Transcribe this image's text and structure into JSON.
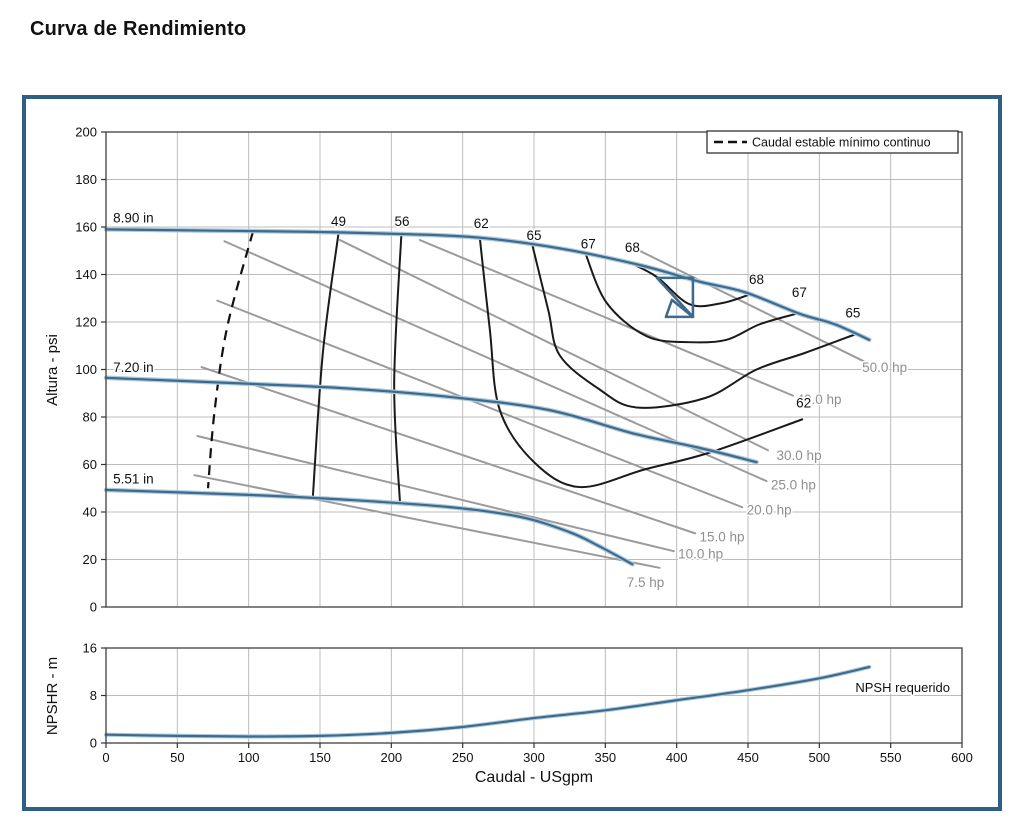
{
  "title": "Curva de Rendimiento",
  "legend": {
    "min_flow_label": "Caudal estable mínimo continuo"
  },
  "colors": {
    "panel_border": "#2e5f86",
    "curve_blue": "#3e6b8d",
    "curve_halo": "#aecbdd",
    "contour_black": "#1a1a1a",
    "power_gray": "#9b9b9b",
    "grid_gray": "#bcbcbc",
    "label_gray": "#8f8f8f",
    "plot_border": "#4d4d4d"
  },
  "chart_data": {
    "type": "line",
    "title": "Curva de Rendimiento",
    "x_axis": {
      "label": "Caudal - USgpm",
      "min": 0,
      "max": 600,
      "ticks": [
        0,
        50,
        100,
        150,
        200,
        250,
        300,
        350,
        400,
        450,
        500,
        550,
        600
      ]
    },
    "y_axis_main": {
      "label": "Altura - psi",
      "min": 0,
      "max": 200,
      "ticks": [
        0,
        20,
        40,
        60,
        80,
        100,
        120,
        140,
        160,
        180,
        200
      ]
    },
    "y_axis_npsh": {
      "label": "NPSHR - m",
      "min": 0,
      "max": 16,
      "ticks": [
        0,
        8,
        16
      ]
    },
    "legend": {
      "entries": [
        {
          "label": "Caudal estable mínimo continuo",
          "style": "dashed"
        }
      ],
      "position": "top-right"
    },
    "grid": true,
    "impeller_curves": [
      {
        "label": "8.90 in",
        "label_pos": [
          5,
          162
        ],
        "points": [
          [
            0,
            159
          ],
          [
            70,
            158.5
          ],
          [
            140,
            158
          ],
          [
            210,
            157
          ],
          [
            262,
            155.5
          ],
          [
            318,
            151
          ],
          [
            374,
            144
          ],
          [
            416,
            137
          ],
          [
            448,
            132.5
          ],
          [
            486,
            123.5
          ],
          [
            511,
            119
          ],
          [
            535,
            112.5
          ]
        ]
      },
      {
        "label": "7.20 in",
        "label_pos": [
          5,
          99
        ],
        "points": [
          [
            0,
            96.5
          ],
          [
            100,
            94
          ],
          [
            170,
            92
          ],
          [
            240,
            88.5
          ],
          [
            310,
            83
          ],
          [
            370,
            73
          ],
          [
            416,
            67
          ],
          [
            456,
            61
          ]
        ]
      },
      {
        "label": "5.51 in",
        "label_pos": [
          5,
          52
        ],
        "points": [
          [
            0,
            49.3
          ],
          [
            100,
            47.2
          ],
          [
            170,
            45.1
          ],
          [
            240,
            42.1
          ],
          [
            290,
            38
          ],
          [
            325,
            31.5
          ],
          [
            346,
            25.5
          ],
          [
            369,
            18
          ]
        ]
      }
    ],
    "min_flow_line": {
      "label": "Caudal estable mínimo continuo",
      "points": [
        [
          103,
          158
        ],
        [
          85,
          118
        ],
        [
          76,
          82
        ],
        [
          71.5,
          50
        ]
      ]
    },
    "efficiency_contours": [
      {
        "label": "49",
        "label_positions": [
          [
            163,
            160.5
          ]
        ],
        "points": [
          [
            163,
            157.5
          ],
          [
            152,
            107
          ],
          [
            145,
            46.5
          ]
        ]
      },
      {
        "label": "56",
        "label_positions": [
          [
            207.5,
            160.5
          ]
        ],
        "points": [
          [
            207,
            156.5
          ],
          [
            202,
            94
          ],
          [
            206,
            44.5
          ]
        ]
      },
      {
        "label": "62",
        "label_positions": [
          [
            263,
            159.5
          ],
          [
            489,
            84
          ]
        ],
        "points": [
          [
            262,
            155.5
          ],
          [
            269,
            117
          ],
          [
            276,
            83
          ],
          [
            300,
            61
          ],
          [
            332,
            50.5
          ],
          [
            378,
            58
          ],
          [
            423,
            65
          ],
          [
            488,
            79
          ]
        ]
      },
      {
        "label": "65",
        "label_positions": [
          [
            300,
            154.5
          ],
          [
            523.5,
            122
          ]
        ],
        "points": [
          [
            299,
            152
          ],
          [
            310,
            125
          ],
          [
            318,
            106
          ],
          [
            345,
            92
          ],
          [
            372,
            84
          ],
          [
            420,
            88
          ],
          [
            456,
            100
          ],
          [
            490,
            107
          ],
          [
            526,
            115
          ]
        ]
      },
      {
        "label": "67",
        "label_positions": [
          [
            338,
            151
          ],
          [
            486,
            130.5
          ]
        ],
        "points": [
          [
            336,
            149
          ],
          [
            351,
            128
          ],
          [
            379,
            114
          ],
          [
            409,
            111.5
          ],
          [
            435,
            112.5
          ],
          [
            458,
            119
          ],
          [
            484,
            123.5
          ]
        ]
      },
      {
        "label": "68",
        "label_positions": [
          [
            369,
            149.5
          ],
          [
            456,
            136
          ]
        ],
        "points": [
          [
            367,
            145
          ],
          [
            386,
            139
          ],
          [
            409,
            127.5
          ],
          [
            432,
            128
          ],
          [
            453,
            132
          ]
        ]
      }
    ],
    "power_lines": [
      {
        "label": "7.5 hp",
        "hp": 7.5,
        "points": [
          [
            62,
            55.5
          ],
          [
            388,
            16.5
          ]
        ],
        "label_pos": [
          365,
          8.5
        ]
      },
      {
        "label": "10.0 hp",
        "hp": 10,
        "points": [
          [
            64,
            72
          ],
          [
            398,
            23.5
          ]
        ],
        "label_pos": [
          401,
          20.5
        ]
      },
      {
        "label": "15.0 hp",
        "hp": 15,
        "points": [
          [
            67,
            101
          ],
          [
            413,
            31
          ]
        ],
        "label_pos": [
          416,
          27.5
        ]
      },
      {
        "label": "20.0 hp",
        "hp": 20,
        "points": [
          [
            78,
            129
          ],
          [
            446,
            42
          ]
        ],
        "label_pos": [
          449,
          39
        ]
      },
      {
        "label": "25.0 hp",
        "hp": 25,
        "points": [
          [
            83,
            154
          ],
          [
            463,
            53
          ]
        ],
        "label_pos": [
          466,
          49.5
        ]
      },
      {
        "label": "30.0 hp",
        "hp": 30,
        "points": [
          [
            164,
            154.5
          ],
          [
            464,
            66
          ]
        ],
        "label_pos": [
          470,
          62
        ]
      },
      {
        "label": "40.0 hp",
        "hp": 40,
        "points": [
          [
            220,
            154.5
          ],
          [
            481.5,
            89
          ]
        ],
        "label_pos": [
          484,
          85.5
        ]
      },
      {
        "label": "50.0 hp",
        "hp": 50,
        "points": [
          [
            374,
            150
          ],
          [
            531,
            103.5
          ]
        ],
        "label_pos": [
          530,
          99
        ]
      }
    ],
    "duty_point": {
      "gpm": 410,
      "psi": 131
    },
    "npsh_curve": {
      "label": "NPSH requerido",
      "label_pos": [
        592,
        8.6
      ],
      "points": [
        [
          0,
          1.4
        ],
        [
          50,
          1.2
        ],
        [
          100,
          1.1
        ],
        [
          150,
          1.2
        ],
        [
          200,
          1.7
        ],
        [
          250,
          2.7
        ],
        [
          300,
          4.2
        ],
        [
          350,
          5.5
        ],
        [
          400,
          7.2
        ],
        [
          450,
          8.9
        ],
        [
          500,
          10.9
        ],
        [
          535,
          12.8
        ]
      ]
    }
  }
}
